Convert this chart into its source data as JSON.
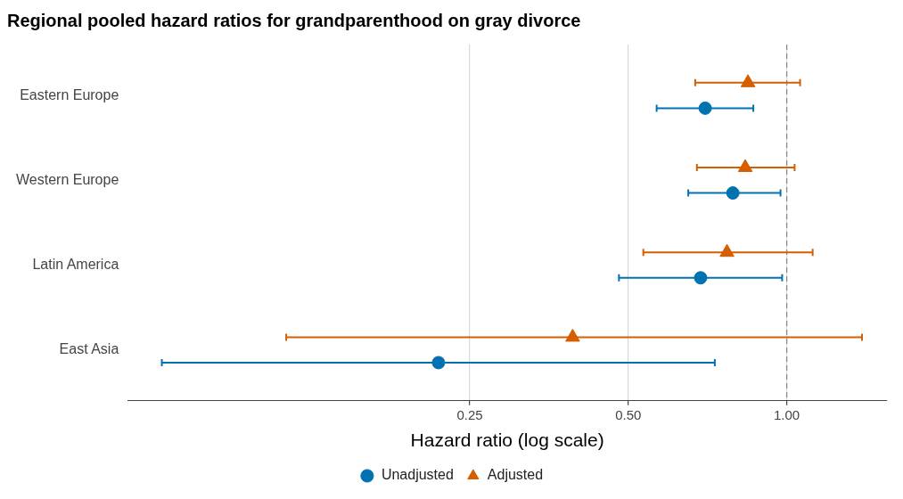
{
  "chart_data": {
    "type": "scatter",
    "title": "Regional pooled hazard ratios for grandparenthood on gray divorce",
    "xlabel": "Hazard ratio (log scale)",
    "orientation": "horizontal",
    "log": "x",
    "grid": "x",
    "legend": "bottom",
    "categories": [
      "Eastern Europe",
      "Western Europe",
      "Latin America",
      "East Asia"
    ],
    "xlim": [
      0.056,
      1.55
    ],
    "xticks": [
      {
        "value": 0.25,
        "label": "0.25"
      },
      {
        "value": 0.5,
        "label": "0.50"
      },
      {
        "value": 1,
        "label": "1.00"
      }
    ],
    "ref_lines": [
      {
        "axis": "x",
        "value": 1,
        "label": null,
        "color": "#8c8c8c",
        "line_style": "dashed"
      }
    ],
    "series": [
      {
        "name": "Unadjusted",
        "color": "#0072b2",
        "marker": "circle",
        "values": [
          0.7,
          0.79,
          0.686,
          0.218
        ],
        "errors": [
          [
            0.566,
            0.864
          ],
          [
            0.65,
            0.973
          ],
          [
            0.48,
            0.98
          ],
          [
            0.065,
            0.73
          ]
        ]
      },
      {
        "name": "Adjusted",
        "color": "#d55e00",
        "marker": "triangle",
        "values": [
          0.844,
          0.834,
          0.77,
          0.392
        ],
        "errors": [
          [
            0.67,
            1.06
          ],
          [
            0.675,
            1.035
          ],
          [
            0.534,
            1.12
          ],
          [
            0.112,
            1.39
          ]
        ]
      }
    ]
  }
}
